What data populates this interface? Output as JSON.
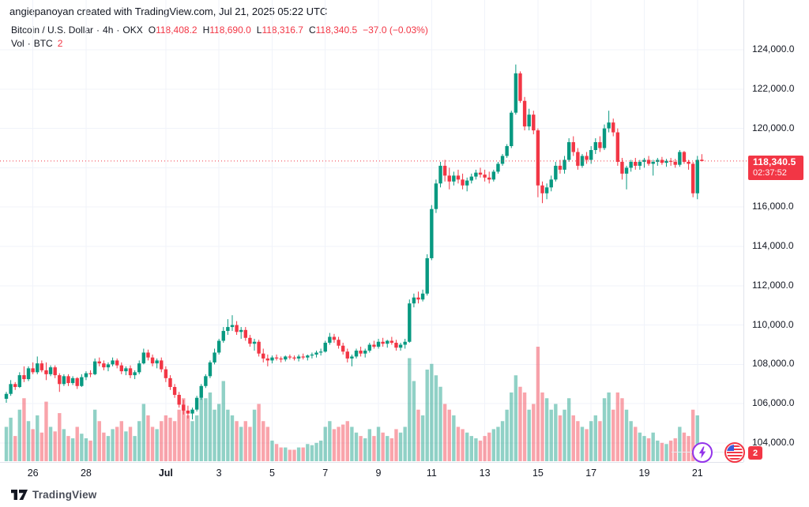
{
  "attribution": "angiepanoyan created with TradingView.com, Jul 21, 2025 05:22 UTC",
  "legend": {
    "symbol": "Bitcoin / U.S. Dollar",
    "separator": "·",
    "interval": "4h",
    "exchange": "OKX",
    "ohlc": {
      "o_label": "O",
      "o_value": "118,408.2",
      "h_label": "H",
      "h_value": "118,690.0",
      "l_label": "L",
      "l_value": "118,316.7",
      "c_label": "C",
      "c_value": "118,340.5",
      "change": "−37.0 (−0.03%)"
    },
    "volume_row": {
      "label": "Vol",
      "separator": "·",
      "unit": "BTC",
      "value": "2"
    }
  },
  "price_badge": {
    "price": "118,340.5",
    "countdown": "02:37:52"
  },
  "markers": {
    "lightning": "lightning-bolt",
    "flag": "us-flag",
    "event_count": "2"
  },
  "footer": {
    "brand": "TradingView"
  },
  "colors": {
    "up": "#089981",
    "down": "#f23645",
    "vol_up": "rgba(8,153,129,0.45)",
    "vol_down": "rgba(242,54,69,0.45)",
    "grid": "#f0f3fa",
    "axis_border": "#e0e3eb",
    "text": "#131722",
    "accent_purple": "#9334ea",
    "badge_bg": "#f23645"
  },
  "chart_data": {
    "type": "candlestick",
    "title": "Bitcoin / U.S. Dollar · 4h · OKX",
    "interval": "4h",
    "exchange": "OKX",
    "current_candle": {
      "open": 118408.2,
      "high": 118690.0,
      "low": 118316.7,
      "close": 118340.5,
      "change": -37.0,
      "change_pct": -0.03
    },
    "last_price": 118340.5,
    "volume_current_btc": 2,
    "y_axis": {
      "grid_prices": [
        104000,
        106000,
        108000,
        110000,
        112000,
        114000,
        116000,
        118000,
        120000,
        122000,
        124000
      ],
      "tick_labels": [
        {
          "price": 124000,
          "label": "124,000.0"
        },
        {
          "price": 122000,
          "label": "122,000.0"
        },
        {
          "price": 120000,
          "label": "120,000.0"
        },
        {
          "price": 116000,
          "label": "116,000.0"
        },
        {
          "price": 114000,
          "label": "114,000.0"
        },
        {
          "price": 112000,
          "label": "112,000.0"
        },
        {
          "price": 110000,
          "label": "110,000.0"
        },
        {
          "price": 108000,
          "label": "108,000.0"
        },
        {
          "price": 106000,
          "label": "106,000.0"
        },
        {
          "price": 104000,
          "label": "104,000.0"
        }
      ]
    },
    "x_axis": {
      "labels": [
        {
          "text": "26",
          "i": 6,
          "bold": false
        },
        {
          "text": "28",
          "i": 18,
          "bold": false
        },
        {
          "text": "Jul",
          "i": 36,
          "bold": true
        },
        {
          "text": "3",
          "i": 48,
          "bold": false
        },
        {
          "text": "5",
          "i": 60,
          "bold": false
        },
        {
          "text": "7",
          "i": 72,
          "bold": false
        },
        {
          "text": "9",
          "i": 84,
          "bold": false
        },
        {
          "text": "11",
          "i": 96,
          "bold": false
        },
        {
          "text": "13",
          "i": 108,
          "bold": false
        },
        {
          "text": "15",
          "i": 120,
          "bold": false
        },
        {
          "text": "17",
          "i": 132,
          "bold": false
        },
        {
          "text": "19",
          "i": 144,
          "bold": false
        },
        {
          "text": "21",
          "i": 156,
          "bold": false
        }
      ]
    },
    "columns": [
      "open",
      "high",
      "low",
      "close",
      "volume_relative"
    ],
    "candles": [
      [
        106250,
        106600,
        106050,
        106500,
        0.3
      ],
      [
        106500,
        107200,
        106400,
        107000,
        0.38
      ],
      [
        107000,
        107100,
        106700,
        106850,
        0.22
      ],
      [
        106850,
        107600,
        106800,
        107450,
        0.45
      ],
      [
        107450,
        107900,
        107100,
        107250,
        0.55
      ],
      [
        107250,
        107900,
        107150,
        107800,
        0.35
      ],
      [
        107800,
        108100,
        107500,
        107600,
        0.28
      ],
      [
        107600,
        108400,
        107500,
        108050,
        0.4
      ],
      [
        108050,
        108200,
        107600,
        107700,
        0.25
      ],
      [
        107700,
        108100,
        107200,
        107500,
        0.52
      ],
      [
        107500,
        107950,
        107400,
        107850,
        0.3
      ],
      [
        107850,
        107950,
        107300,
        107450,
        0.26
      ],
      [
        107450,
        107550,
        106600,
        107000,
        0.42
      ],
      [
        107000,
        107500,
        106900,
        107400,
        0.28
      ],
      [
        107400,
        107500,
        106900,
        107050,
        0.22
      ],
      [
        107050,
        107400,
        106950,
        107300,
        0.2
      ],
      [
        107300,
        107350,
        106750,
        106900,
        0.3
      ],
      [
        106900,
        107500,
        106850,
        107350,
        0.24
      ],
      [
        107350,
        107650,
        107200,
        107550,
        0.2
      ],
      [
        107550,
        107700,
        107350,
        107500,
        0.18
      ],
      [
        107500,
        108300,
        107450,
        108150,
        0.45
      ],
      [
        108150,
        108350,
        107900,
        108050,
        0.35
      ],
      [
        108050,
        108200,
        107700,
        107850,
        0.25
      ],
      [
        107850,
        108100,
        107650,
        108000,
        0.22
      ],
      [
        108000,
        108350,
        107900,
        108200,
        0.28
      ],
      [
        108200,
        108300,
        107800,
        107950,
        0.3
      ],
      [
        107950,
        108100,
        107500,
        107650,
        0.35
      ],
      [
        107650,
        107900,
        107450,
        107800,
        0.26
      ],
      [
        107800,
        107950,
        107300,
        107450,
        0.3
      ],
      [
        107450,
        107700,
        107250,
        107600,
        0.22
      ],
      [
        107600,
        108200,
        107500,
        108050,
        0.35
      ],
      [
        108050,
        108800,
        108000,
        108600,
        0.5
      ],
      [
        108600,
        108750,
        108200,
        108350,
        0.4
      ],
      [
        108350,
        108500,
        107900,
        108050,
        0.3
      ],
      [
        108050,
        108300,
        107800,
        108200,
        0.28
      ],
      [
        108200,
        108350,
        107600,
        107750,
        0.35
      ],
      [
        107750,
        107900,
        107100,
        107300,
        0.4
      ],
      [
        107300,
        107450,
        106700,
        106850,
        0.38
      ],
      [
        106850,
        107000,
        106300,
        106450,
        0.35
      ],
      [
        106450,
        106600,
        105800,
        105950,
        0.45
      ],
      [
        105950,
        106200,
        105450,
        105650,
        0.55
      ],
      [
        105650,
        105900,
        105250,
        105500,
        0.4
      ],
      [
        105500,
        105800,
        105200,
        105700,
        0.35
      ],
      [
        105700,
        106400,
        105600,
        106300,
        0.4
      ],
      [
        106300,
        107000,
        106200,
        106900,
        0.55
      ],
      [
        106900,
        107500,
        106800,
        107400,
        0.55
      ],
      [
        107400,
        108200,
        107300,
        108100,
        0.6
      ],
      [
        108100,
        108800,
        108000,
        108600,
        0.45
      ],
      [
        108600,
        109300,
        108500,
        109200,
        0.5
      ],
      [
        109200,
        109900,
        109100,
        109700,
        0.7
      ],
      [
        109700,
        110300,
        109500,
        109900,
        0.45
      ],
      [
        109900,
        110500,
        109700,
        110000,
        0.4
      ],
      [
        110000,
        110200,
        109500,
        109650,
        0.35
      ],
      [
        109650,
        109900,
        109300,
        109750,
        0.3
      ],
      [
        109750,
        109900,
        109200,
        109350,
        0.35
      ],
      [
        109350,
        109500,
        108900,
        109050,
        0.3
      ],
      [
        109050,
        109300,
        108700,
        109150,
        0.45
      ],
      [
        109150,
        109250,
        108400,
        108550,
        0.5
      ],
      [
        108550,
        108800,
        108100,
        108300,
        0.35
      ],
      [
        108300,
        108500,
        107900,
        108200,
        0.3
      ],
      [
        108200,
        108450,
        108050,
        108350,
        0.18
      ],
      [
        108350,
        108500,
        108200,
        108300,
        0.15
      ],
      [
        108300,
        108400,
        108100,
        108250,
        0.12
      ],
      [
        108250,
        108450,
        108150,
        108400,
        0.12
      ],
      [
        108400,
        108500,
        108250,
        108350,
        0.1
      ],
      [
        108350,
        108450,
        108200,
        108300,
        0.1
      ],
      [
        108300,
        108500,
        108150,
        108400,
        0.12
      ],
      [
        108400,
        108550,
        108250,
        108350,
        0.12
      ],
      [
        108350,
        108500,
        108200,
        108450,
        0.15
      ],
      [
        108450,
        108600,
        108300,
        108500,
        0.14
      ],
      [
        108500,
        108700,
        108350,
        108600,
        0.16
      ],
      [
        108600,
        108800,
        108450,
        108650,
        0.18
      ],
      [
        108650,
        109200,
        108600,
        109100,
        0.3
      ],
      [
        109100,
        109600,
        109000,
        109400,
        0.35
      ],
      [
        109400,
        109550,
        109100,
        109250,
        0.28
      ],
      [
        109250,
        109400,
        108800,
        108950,
        0.3
      ],
      [
        108950,
        109100,
        108500,
        108650,
        0.32
      ],
      [
        108650,
        108800,
        108100,
        108300,
        0.35
      ],
      [
        108300,
        108500,
        107900,
        108400,
        0.3
      ],
      [
        108400,
        108800,
        108300,
        108700,
        0.25
      ],
      [
        108700,
        108900,
        108400,
        108550,
        0.22
      ],
      [
        108550,
        108800,
        108350,
        108700,
        0.2
      ],
      [
        108700,
        109100,
        108600,
        109000,
        0.28
      ],
      [
        109000,
        109200,
        108800,
        108900,
        0.22
      ],
      [
        108900,
        109300,
        108800,
        109150,
        0.3
      ],
      [
        109150,
        109350,
        108900,
        109050,
        0.25
      ],
      [
        109050,
        109250,
        108850,
        109200,
        0.22
      ],
      [
        109200,
        109400,
        109000,
        109100,
        0.2
      ],
      [
        109100,
        109250,
        108700,
        108850,
        0.28
      ],
      [
        108850,
        109100,
        108700,
        109000,
        0.25
      ],
      [
        109000,
        109300,
        108800,
        109150,
        0.3
      ],
      [
        109150,
        111300,
        109100,
        111100,
        0.9
      ],
      [
        111100,
        111600,
        110900,
        111400,
        0.7
      ],
      [
        111400,
        111700,
        111100,
        111300,
        0.45
      ],
      [
        111300,
        111800,
        111200,
        111600,
        0.4
      ],
      [
        111600,
        113600,
        111500,
        113400,
        0.8
      ],
      [
        113400,
        116100,
        113300,
        115900,
        0.85
      ],
      [
        115900,
        117400,
        115700,
        117200,
        0.75
      ],
      [
        117200,
        118300,
        117000,
        118100,
        0.65
      ],
      [
        118100,
        118400,
        117300,
        117600,
        0.5
      ],
      [
        117600,
        118000,
        116900,
        117300,
        0.45
      ],
      [
        117300,
        117800,
        117100,
        117600,
        0.4
      ],
      [
        117600,
        117900,
        117200,
        117400,
        0.3
      ],
      [
        117400,
        117700,
        116900,
        117100,
        0.28
      ],
      [
        117100,
        117500,
        116800,
        117350,
        0.25
      ],
      [
        117350,
        117700,
        117200,
        117550,
        0.22
      ],
      [
        117550,
        117900,
        117400,
        117750,
        0.2
      ],
      [
        117750,
        118000,
        117500,
        117650,
        0.18
      ],
      [
        117650,
        117900,
        117300,
        117500,
        0.22
      ],
      [
        117500,
        117800,
        117200,
        117400,
        0.25
      ],
      [
        117400,
        117900,
        117300,
        117800,
        0.28
      ],
      [
        117800,
        118300,
        117700,
        118200,
        0.3
      ],
      [
        118200,
        118700,
        118100,
        118600,
        0.35
      ],
      [
        118600,
        119200,
        118500,
        119100,
        0.45
      ],
      [
        119100,
        120900,
        119000,
        120800,
        0.6
      ],
      [
        120800,
        123250,
        120700,
        122800,
        0.75
      ],
      [
        122800,
        122900,
        121300,
        121400,
        0.65
      ],
      [
        121400,
        121600,
        119900,
        120100,
        0.6
      ],
      [
        120100,
        121000,
        119900,
        120700,
        0.45
      ],
      [
        120700,
        120900,
        119700,
        119900,
        0.5
      ],
      [
        119900,
        120000,
        116500,
        117100,
        1.0
      ],
      [
        117100,
        117300,
        116200,
        116700,
        0.6
      ],
      [
        116700,
        117200,
        116400,
        117000,
        0.55
      ],
      [
        117000,
        117600,
        116800,
        117400,
        0.45
      ],
      [
        117400,
        118300,
        117300,
        118100,
        0.5
      ],
      [
        118100,
        118400,
        117700,
        117900,
        0.4
      ],
      [
        117900,
        118600,
        117700,
        118400,
        0.45
      ],
      [
        118400,
        119500,
        118300,
        119300,
        0.55
      ],
      [
        119300,
        119600,
        118600,
        118800,
        0.4
      ],
      [
        118800,
        119000,
        117900,
        118100,
        0.35
      ],
      [
        118100,
        118700,
        118000,
        118600,
        0.3
      ],
      [
        118600,
        118800,
        118200,
        118400,
        0.28
      ],
      [
        118400,
        119100,
        118200,
        118900,
        0.35
      ],
      [
        118900,
        119500,
        118700,
        119300,
        0.4
      ],
      [
        119300,
        119600,
        118800,
        119000,
        0.35
      ],
      [
        119000,
        120200,
        118900,
        120000,
        0.55
      ],
      [
        120000,
        120900,
        119800,
        120300,
        0.6
      ],
      [
        120300,
        120500,
        119600,
        119800,
        0.45
      ],
      [
        119800,
        120000,
        118100,
        118300,
        0.6
      ],
      [
        118300,
        118500,
        117400,
        117700,
        0.55
      ],
      [
        117700,
        118100,
        116900,
        118000,
        0.45
      ],
      [
        118000,
        118400,
        117800,
        118300,
        0.35
      ],
      [
        118300,
        118500,
        117900,
        118100,
        0.3
      ],
      [
        118100,
        118400,
        117900,
        118300,
        0.25
      ],
      [
        118300,
        118500,
        118000,
        118400,
        0.22
      ],
      [
        118400,
        118600,
        118100,
        118200,
        0.2
      ],
      [
        118200,
        118400,
        117600,
        118300,
        0.25
      ],
      [
        118300,
        118500,
        118100,
        118400,
        0.18
      ],
      [
        118400,
        118550,
        118150,
        118250,
        0.16
      ],
      [
        118250,
        118450,
        118050,
        118350,
        0.15
      ],
      [
        118350,
        118500,
        118100,
        118300,
        0.18
      ],
      [
        118300,
        118450,
        118000,
        118150,
        0.2
      ],
      [
        118150,
        118900,
        118050,
        118800,
        0.3
      ],
      [
        118800,
        118850,
        118200,
        118300,
        0.25
      ],
      [
        118300,
        118400,
        117900,
        118200,
        0.22
      ],
      [
        118200,
        118300,
        116500,
        116700,
        0.45
      ],
      [
        116700,
        118600,
        116400,
        118400,
        0.4
      ],
      [
        118408.2,
        118690,
        118316.7,
        118340.5,
        0.12
      ]
    ]
  }
}
